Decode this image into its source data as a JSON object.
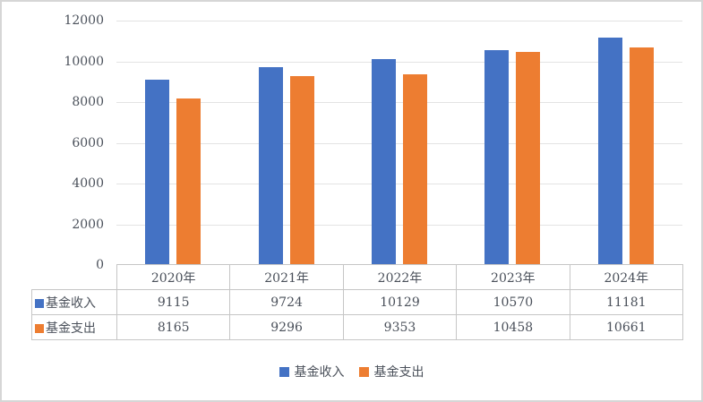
{
  "chart_data": {
    "type": "bar",
    "title": "",
    "xlabel": "",
    "ylabel": "",
    "categories": [
      "2020年",
      "2021年",
      "2022年",
      "2023年",
      "2024年"
    ],
    "series": [
      {
        "name": "基金收入",
        "color": "#4472C4",
        "values": [
          9115,
          9724,
          10129,
          10570,
          11181
        ]
      },
      {
        "name": "基金支出",
        "color": "#ED7D31",
        "values": [
          8165,
          9296,
          9353,
          10458,
          10661
        ]
      }
    ],
    "ylim": [
      0,
      12000
    ],
    "yticks": [
      12000,
      10000,
      8000,
      6000,
      4000,
      2000,
      0
    ],
    "grid": true,
    "legend_position": "bottom",
    "data_table_shown": true,
    "colors": {
      "series1": "#4472C4",
      "series2": "#ED7D31",
      "gridline": "#E3E3E3",
      "table_border": "#C6C6C6",
      "text": "#4A505A",
      "frame_border": "#D6D6D6"
    }
  }
}
